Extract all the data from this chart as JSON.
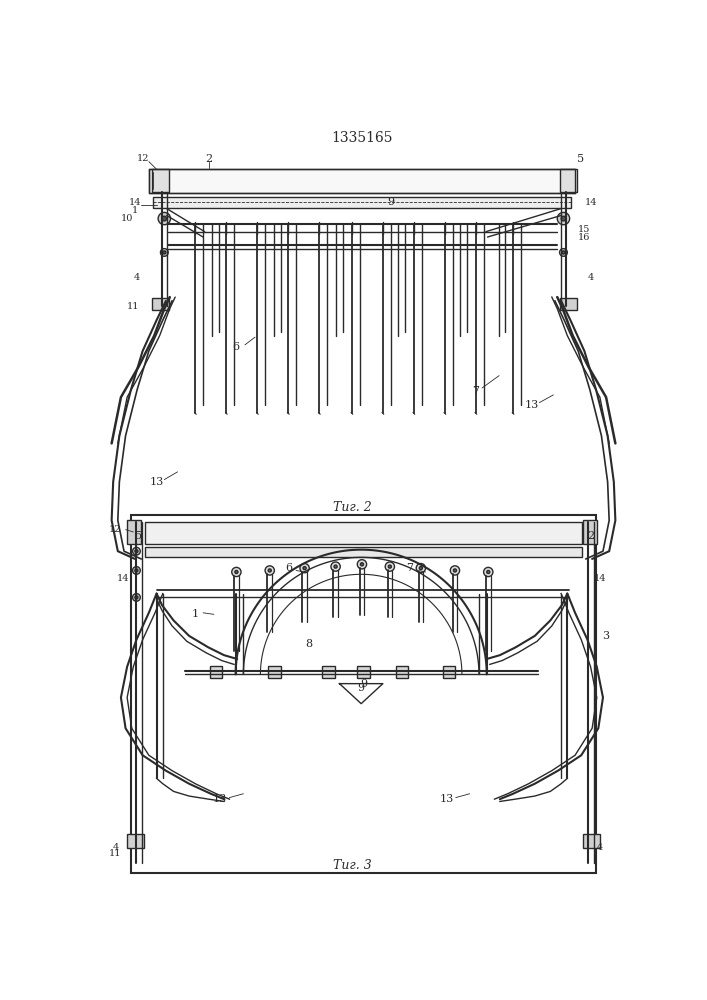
{
  "title": "1335165",
  "title_fontsize": 10,
  "fig2_label": "Τиг. 2",
  "fig3_label": "Τиг. 3",
  "bg_color": "#ffffff",
  "line_color": "#2a2a2a",
  "lw": 1.0,
  "tlw": 0.6,
  "thk": 1.8
}
